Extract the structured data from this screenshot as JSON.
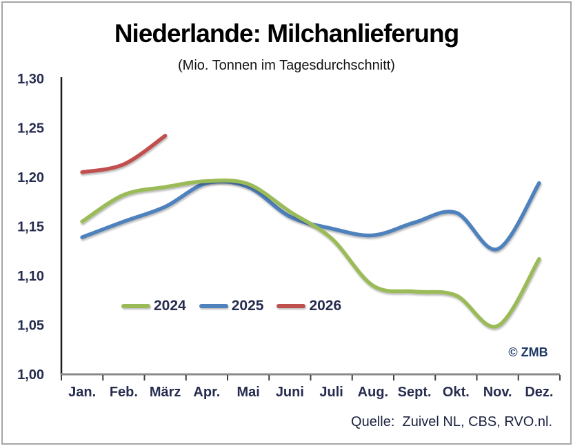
{
  "header": {
    "title": "Niederlande: Milchanlieferung",
    "subtitle": "(Mio. Tonnen im Tagesdurchschnitt)"
  },
  "footer": {
    "source": "Quelle:  Zuivel NL, CBS, RVO.nl.",
    "copyright": "© ZMB"
  },
  "colors": {
    "axis_text": "#252c4e",
    "y_axis_line": "#1a1a1a",
    "x_axis_line": "#8a8a8a",
    "tick_mark": "#3f3f3f",
    "frame_border": "#a6a6a6"
  },
  "chart_data": {
    "type": "line",
    "smoothed": true,
    "title": "Niederlande: Milchanlieferung",
    "subtitle": "(Mio. Tonnen im Tagesdurchschnitt)",
    "categories": [
      "Jan.",
      "Feb.",
      "März",
      "Apr.",
      "Mai",
      "Juni",
      "Juli",
      "Aug.",
      "Sept.",
      "Okt.",
      "Nov.",
      "Dez."
    ],
    "y_axis": {
      "min": 1.0,
      "max": 1.3,
      "step": 0.05,
      "tick_labels": [
        "1,00",
        "1,05",
        "1,10",
        "1,15",
        "1,20",
        "1,25",
        "1,30"
      ]
    },
    "legend_position": "inside-left-middle",
    "series": [
      {
        "name": "2024",
        "color": "#9bbb59",
        "values": [
          1.155,
          1.182,
          1.19,
          1.196,
          1.193,
          1.165,
          1.138,
          1.09,
          1.084,
          1.08,
          1.049,
          1.117
        ]
      },
      {
        "name": "2025",
        "color": "#4f81bd",
        "values": [
          1.139,
          1.155,
          1.17,
          1.194,
          1.19,
          1.16,
          1.148,
          1.141,
          1.154,
          1.164,
          1.127,
          1.194
        ]
      },
      {
        "name": "2026",
        "color": "#c0504d",
        "values": [
          1.205,
          1.213,
          1.242,
          null,
          null,
          null,
          null,
          null,
          null,
          null,
          null,
          null
        ]
      }
    ]
  }
}
